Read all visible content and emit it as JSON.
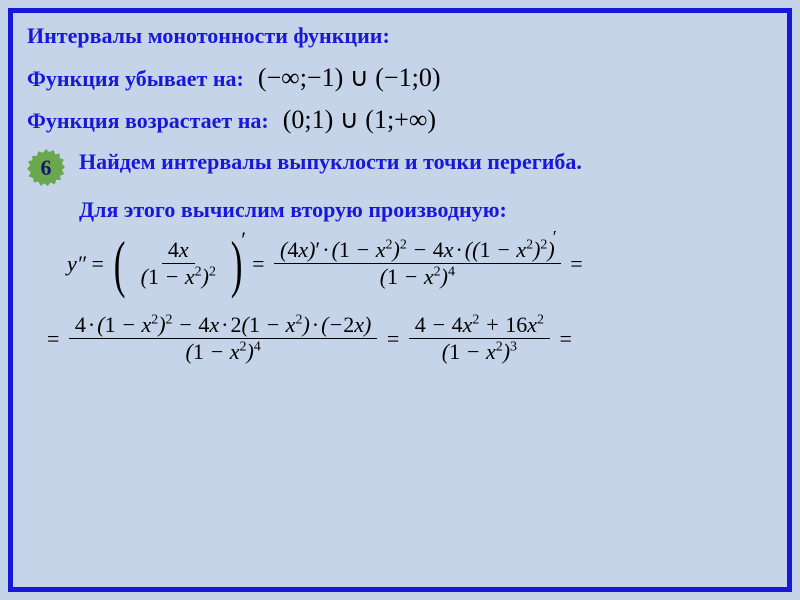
{
  "colors": {
    "frame": "#1818d8",
    "background": "#c5d4e8",
    "text_primary": "#1818d8",
    "math": "#000000",
    "badge_bg": "#6aa84f",
    "badge_text": "#18186a"
  },
  "heading": "Интервалы монотонности функции:",
  "decreasing": {
    "label": "Функция убывает на:",
    "interval": "(−∞;−1) ∪ (−1;0)"
  },
  "increasing": {
    "label": "Функция возрастает на:",
    "interval": "(0;1) ∪ (1;+∞)"
  },
  "step": {
    "number": "6",
    "title": "Найдем интервалы выпуклости и точки перегиба.",
    "subtitle": "Для этого вычислим вторую производную:"
  },
  "equation1": {
    "lhs": "y″",
    "frac1": {
      "num": "4x",
      "den": "(1 − x²)²"
    },
    "frac2": {
      "num_part1": "(4x)′",
      "num_mid": "· (1 − x²)² − 4x ·",
      "num_part2_base": "(1 − x²)²",
      "den": "(1 − x²)⁴"
    }
  },
  "equation2": {
    "frac1": {
      "num": "4 · (1 − x²)² − 4x · 2(1 − x²) · (−2x)",
      "den": "(1 − x²)⁴"
    },
    "frac2": {
      "num": "4 − 4x² + 16x²",
      "den": "(1 − x²)³"
    }
  },
  "typography": {
    "heading_fontsize": 22,
    "math_fontsize": 26,
    "eq_fontsize": 22,
    "font_family_text": "Georgia, Times New Roman, serif",
    "font_family_math": "Times New Roman, serif"
  }
}
